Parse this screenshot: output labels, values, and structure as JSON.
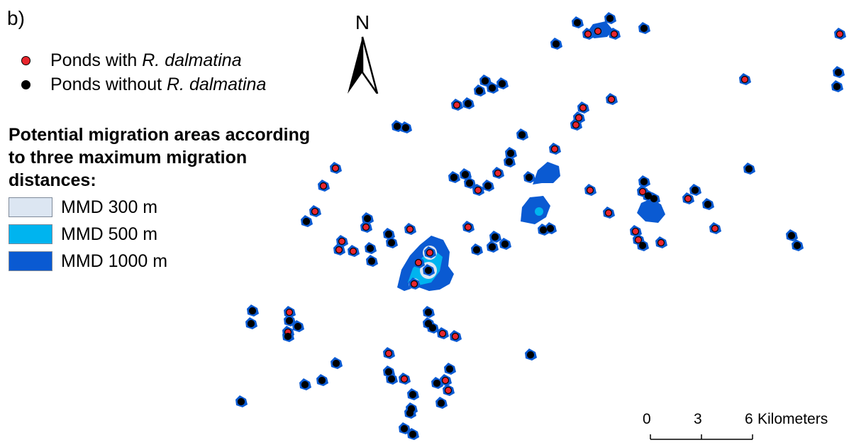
{
  "panel_label": "b)",
  "legend": {
    "ponds_with_prefix": "Ponds with ",
    "ponds_without_prefix": "Ponds without ",
    "species": "R. dalmatina",
    "title": "Potential migration areas according to three maximum migration distances:",
    "areas": [
      "MMD 300 m",
      "MMD 500 m",
      "MMD 1000 m"
    ]
  },
  "north_label": "N",
  "scale": {
    "ticks": [
      "0",
      "3",
      "6"
    ],
    "unit": "Kilometers"
  },
  "colors": {
    "with_species": "#e8262d",
    "without_species": "#000000",
    "mmd300": "#dce6f2",
    "mmd500": "#00b4ef",
    "mmd1000": "#0a5ad2"
  }
}
